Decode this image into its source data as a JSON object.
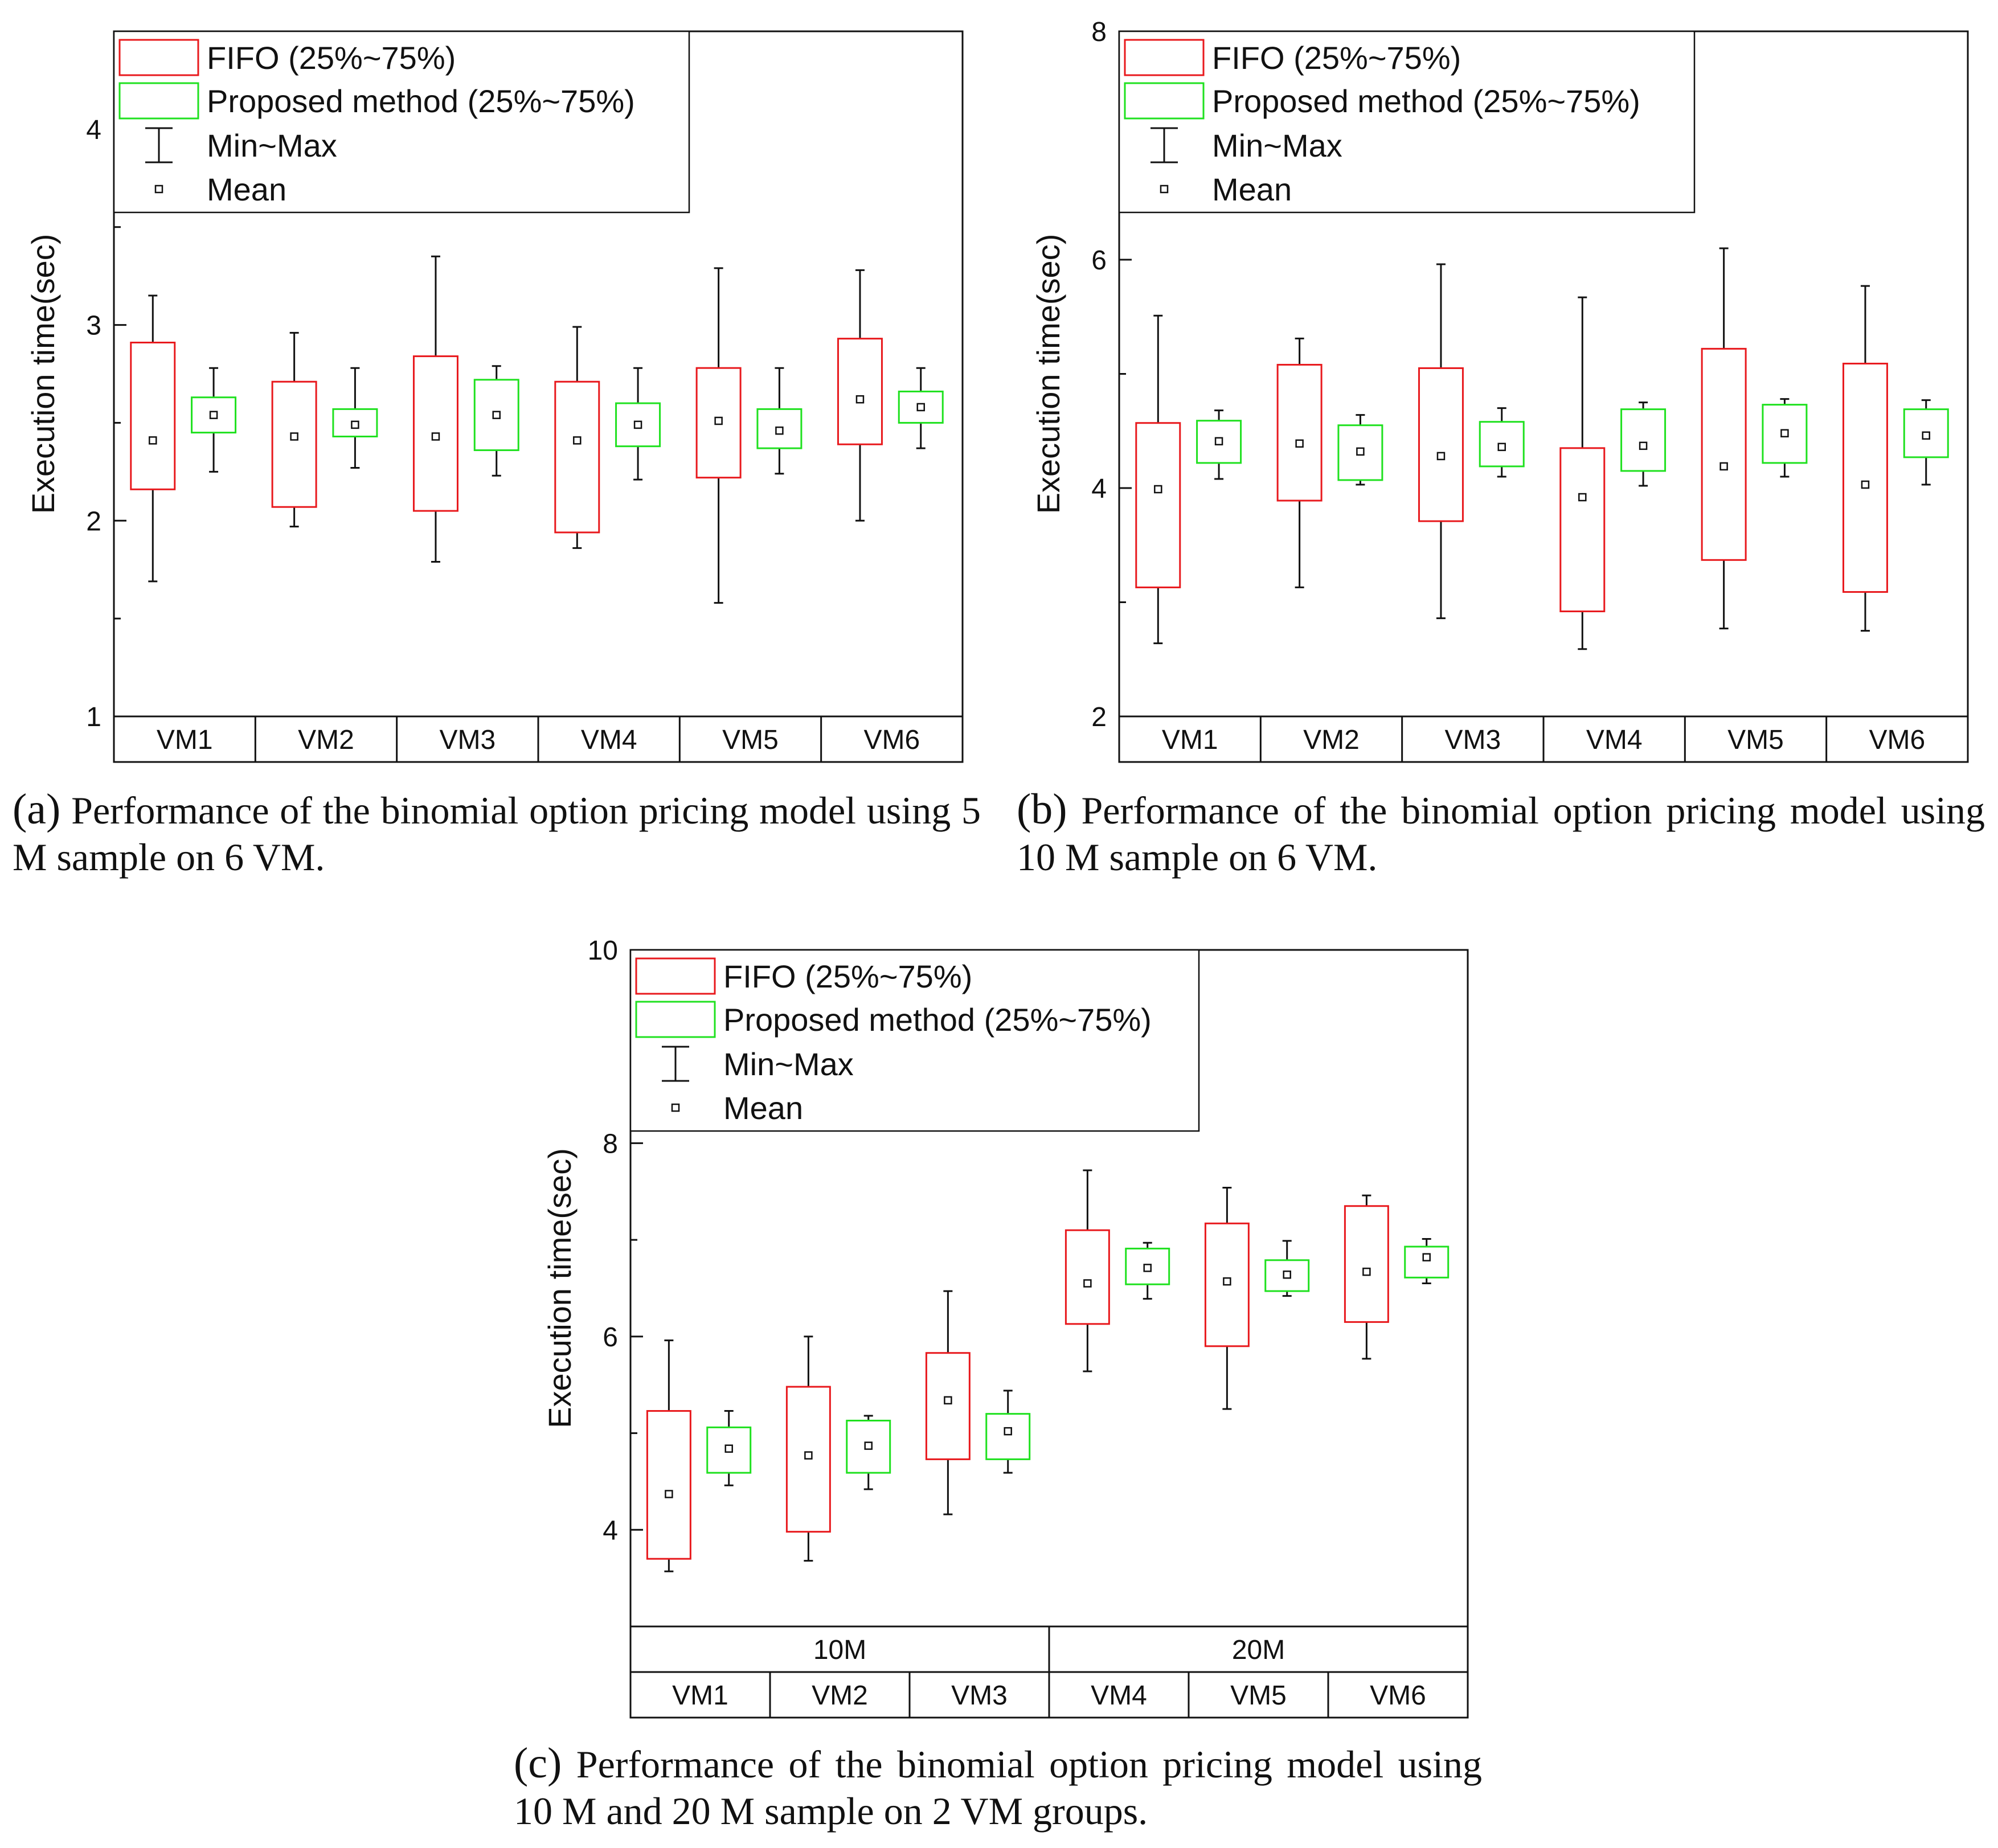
{
  "colors": {
    "fifo": "#e8191d",
    "proposed": "#1fe11f",
    "whisker": "#111111",
    "axis": "#111111"
  },
  "legend": {
    "fifo": "FIFO (25%~75%)",
    "proposed": "Proposed method (25%~75%)",
    "minmax": "Min~Max",
    "mean": "Mean"
  },
  "captions": [
    {
      "letter": "(a)",
      "text": " Performance of the binomial option pricing model using 5 M sample on 6 VM."
    },
    {
      "letter": "(b)",
      "text": " Performance of the binomial option pricing model using 10 M sample on 6 VM."
    },
    {
      "letter": "(c)",
      "text": " Performance of the binomial option pricing model using 10 M and 20 M sample on 2 VM groups."
    }
  ],
  "chart_data": [
    {
      "id": "a",
      "type": "box",
      "ylabel": "Execution time(sec)",
      "ylim": [
        1,
        4.5
      ],
      "yticks": [
        1,
        2,
        3,
        4
      ],
      "categories": [
        "VM1",
        "VM2",
        "VM3",
        "VM4",
        "VM5",
        "VM6"
      ],
      "groups": [],
      "series": [
        {
          "name": "FIFO (25%~75%)",
          "boxes": [
            {
              "min": 1.69,
              "q1": 2.16,
              "q3": 2.91,
              "max": 3.15,
              "mean": 2.41
            },
            {
              "min": 1.97,
              "q1": 2.07,
              "q3": 2.71,
              "max": 2.96,
              "mean": 2.43
            },
            {
              "min": 1.79,
              "q1": 2.05,
              "q3": 2.84,
              "max": 3.35,
              "mean": 2.43
            },
            {
              "min": 1.86,
              "q1": 1.94,
              "q3": 2.71,
              "max": 2.99,
              "mean": 2.41
            },
            {
              "min": 1.58,
              "q1": 2.22,
              "q3": 2.78,
              "max": 3.29,
              "mean": 2.51
            },
            {
              "min": 2.0,
              "q1": 2.39,
              "q3": 2.93,
              "max": 3.28,
              "mean": 2.62
            }
          ]
        },
        {
          "name": "Proposed method (25%~75%)",
          "boxes": [
            {
              "min": 2.25,
              "q1": 2.45,
              "q3": 2.63,
              "max": 2.78,
              "mean": 2.54
            },
            {
              "min": 2.27,
              "q1": 2.43,
              "q3": 2.57,
              "max": 2.78,
              "mean": 2.49
            },
            {
              "min": 2.23,
              "q1": 2.36,
              "q3": 2.72,
              "max": 2.79,
              "mean": 2.54
            },
            {
              "min": 2.21,
              "q1": 2.38,
              "q3": 2.6,
              "max": 2.78,
              "mean": 2.49
            },
            {
              "min": 2.24,
              "q1": 2.37,
              "q3": 2.57,
              "max": 2.78,
              "mean": 2.46
            },
            {
              "min": 2.37,
              "q1": 2.5,
              "q3": 2.66,
              "max": 2.78,
              "mean": 2.58
            }
          ]
        }
      ]
    },
    {
      "id": "b",
      "type": "box",
      "ylabel": "Execution time(sec)",
      "ylim": [
        2,
        8
      ],
      "yticks": [
        2,
        4,
        6,
        8
      ],
      "categories": [
        "VM1",
        "VM2",
        "VM3",
        "VM4",
        "VM5",
        "VM6"
      ],
      "groups": [],
      "series": [
        {
          "name": "FIFO (25%~75%)",
          "boxes": [
            {
              "min": 2.64,
              "q1": 3.13,
              "q3": 4.57,
              "max": 5.51,
              "mean": 3.99
            },
            {
              "min": 3.13,
              "q1": 3.89,
              "q3": 5.08,
              "max": 5.31,
              "mean": 4.39
            },
            {
              "min": 2.86,
              "q1": 3.71,
              "q3": 5.05,
              "max": 5.96,
              "mean": 4.28
            },
            {
              "min": 2.59,
              "q1": 2.92,
              "q3": 4.35,
              "max": 5.67,
              "mean": 3.92
            },
            {
              "min": 2.77,
              "q1": 3.37,
              "q3": 5.22,
              "max": 6.1,
              "mean": 4.19
            },
            {
              "min": 2.75,
              "q1": 3.09,
              "q3": 5.09,
              "max": 5.77,
              "mean": 4.03
            }
          ]
        },
        {
          "name": "Proposed method (25%~75%)",
          "boxes": [
            {
              "min": 4.08,
              "q1": 4.22,
              "q3": 4.59,
              "max": 4.68,
              "mean": 4.41
            },
            {
              "min": 4.03,
              "q1": 4.07,
              "q3": 4.55,
              "max": 4.64,
              "mean": 4.32
            },
            {
              "min": 4.1,
              "q1": 4.19,
              "q3": 4.58,
              "max": 4.7,
              "mean": 4.36
            },
            {
              "min": 4.02,
              "q1": 4.15,
              "q3": 4.69,
              "max": 4.75,
              "mean": 4.37
            },
            {
              "min": 4.1,
              "q1": 4.22,
              "q3": 4.73,
              "max": 4.78,
              "mean": 4.48
            },
            {
              "min": 4.03,
              "q1": 4.27,
              "q3": 4.69,
              "max": 4.77,
              "mean": 4.46
            }
          ]
        }
      ]
    },
    {
      "id": "c",
      "type": "box",
      "ylabel": "Execution time(sec)",
      "ylim": [
        3,
        10
      ],
      "yticks": [
        4,
        6,
        8,
        10
      ],
      "categories": [
        "VM1",
        "VM2",
        "VM3",
        "VM4",
        "VM5",
        "VM6"
      ],
      "groups": [
        {
          "label": "10M",
          "span": 3
        },
        {
          "label": "20M",
          "span": 3
        }
      ],
      "series": [
        {
          "name": "FIFO (25%~75%)",
          "boxes": [
            {
              "min": 3.57,
              "q1": 3.7,
              "q3": 5.23,
              "max": 5.96,
              "mean": 4.37
            },
            {
              "min": 3.68,
              "q1": 3.98,
              "q3": 5.48,
              "max": 6.0,
              "mean": 4.77
            },
            {
              "min": 4.16,
              "q1": 4.73,
              "q3": 5.83,
              "max": 6.47,
              "mean": 5.34
            },
            {
              "min": 5.64,
              "q1": 6.13,
              "q3": 7.1,
              "max": 7.72,
              "mean": 6.55
            },
            {
              "min": 5.25,
              "q1": 5.9,
              "q3": 7.17,
              "max": 7.54,
              "mean": 6.57
            },
            {
              "min": 5.77,
              "q1": 6.15,
              "q3": 7.35,
              "max": 7.46,
              "mean": 6.67
            }
          ]
        },
        {
          "name": "Proposed method (25%~75%)",
          "boxes": [
            {
              "min": 4.46,
              "q1": 4.59,
              "q3": 5.06,
              "max": 5.23,
              "mean": 4.84
            },
            {
              "min": 4.42,
              "q1": 4.59,
              "q3": 5.13,
              "max": 5.18,
              "mean": 4.87
            },
            {
              "min": 4.59,
              "q1": 4.73,
              "q3": 5.2,
              "max": 5.44,
              "mean": 5.02
            },
            {
              "min": 6.39,
              "q1": 6.54,
              "q3": 6.91,
              "max": 6.97,
              "mean": 6.71
            },
            {
              "min": 6.42,
              "q1": 6.47,
              "q3": 6.79,
              "max": 6.99,
              "mean": 6.64
            },
            {
              "min": 6.55,
              "q1": 6.61,
              "q3": 6.93,
              "max": 7.01,
              "mean": 6.82
            }
          ]
        }
      ]
    }
  ]
}
